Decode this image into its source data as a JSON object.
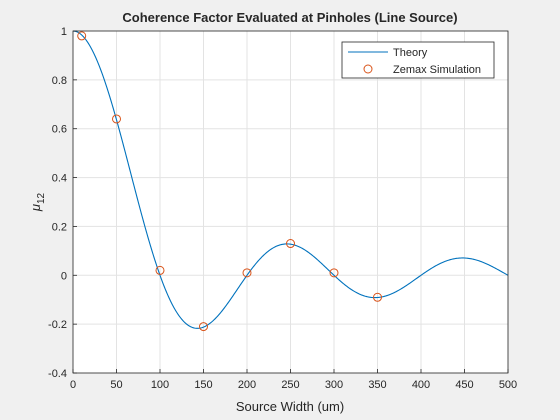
{
  "chart_data": {
    "type": "line",
    "title": "Coherence Factor Evaluated at Pinholes (Line Source)",
    "xlabel": "Source Width (um)",
    "ylabel_symbol": "μ",
    "ylabel_subscript": "12",
    "xlim": [
      0,
      500
    ],
    "ylim": [
      -0.4,
      1
    ],
    "xticks": [
      0,
      50,
      100,
      150,
      200,
      250,
      300,
      350,
      400,
      450,
      500
    ],
    "yticks": [
      -0.4,
      -0.2,
      0,
      0.2,
      0.4,
      0.6,
      0.8,
      1
    ],
    "grid": true,
    "legend_position": "top-right",
    "series": [
      {
        "name": "Theory",
        "kind": "line",
        "color": "#0072bd",
        "sinc_first_zero": 100,
        "x_range": [
          0,
          500
        ]
      },
      {
        "name": "Zemax Simulation",
        "kind": "markers",
        "marker": "circle",
        "color": "#d95319",
        "x": [
          10,
          50,
          100,
          150,
          200,
          250,
          300,
          350
        ],
        "y": [
          0.98,
          0.64,
          0.02,
          -0.21,
          0.01,
          0.13,
          0.01,
          -0.09
        ]
      }
    ]
  }
}
